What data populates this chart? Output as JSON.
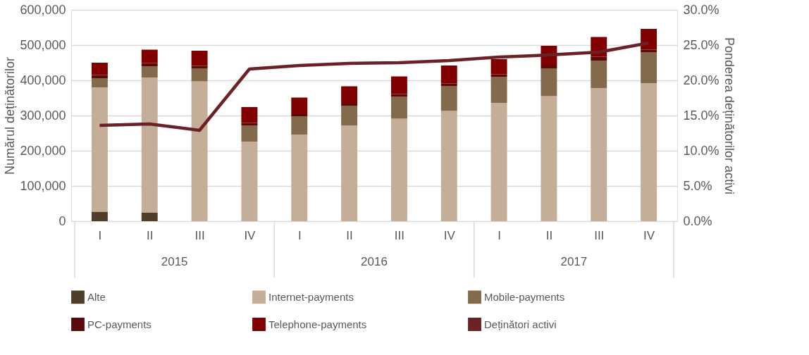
{
  "chart_data": {
    "type": "bar",
    "stacked": true,
    "ylabel": "Numărul deținătorilor",
    "y2label": "Ponderea deținătorilor activi",
    "categories": [
      "I",
      "II",
      "III",
      "IV",
      "I",
      "II",
      "III",
      "IV",
      "I",
      "II",
      "III",
      "IV"
    ],
    "annotations": [
      "2015",
      "2016",
      "2017"
    ],
    "series": [
      {
        "name": "Alte",
        "color": "#4f3f2a",
        "values": [
          27000,
          24000,
          0,
          0,
          0,
          0,
          0,
          0,
          0,
          0,
          0,
          0
        ]
      },
      {
        "name": "Internet-payments",
        "color": "#c4ae9a",
        "values": [
          353000,
          384000,
          397000,
          226000,
          246000,
          272000,
          291000,
          313000,
          336000,
          355000,
          378000,
          392000
        ]
      },
      {
        "name": "Mobile-payments",
        "color": "#836a4a",
        "values": [
          26000,
          31000,
          36000,
          45000,
          51000,
          55000,
          62000,
          71000,
          73000,
          79000,
          78000,
          87000
        ]
      },
      {
        "name": "PC-payments",
        "color": "#5a0a0a",
        "values": [
          9000,
          10000,
          8000,
          8000,
          7000,
          9000,
          8000,
          7000,
          8000,
          8000,
          11000,
          8000
        ]
      },
      {
        "name": "Telephone-payments",
        "color": "#800000",
        "values": [
          35000,
          38000,
          43000,
          45000,
          47000,
          47000,
          50000,
          51000,
          43000,
          56000,
          56000,
          59000
        ]
      },
      {
        "name": "Deținători activi",
        "color": "#6b2226",
        "type": "line",
        "axis": "y2",
        "values": [
          13.6,
          13.8,
          12.9,
          21.6,
          22.1,
          22.4,
          22.5,
          22.8,
          23.3,
          23.6,
          24.0,
          25.3
        ]
      }
    ],
    "ylim": [
      0,
      600000
    ],
    "yticks": [
      {
        "value": 0,
        "label": "0"
      },
      {
        "value": 100000,
        "label": "100,000"
      },
      {
        "value": 200000,
        "label": "200,000"
      },
      {
        "value": 300000,
        "label": "300,000"
      },
      {
        "value": 400000,
        "label": "400,000"
      },
      {
        "value": 500000,
        "label": "500,000"
      },
      {
        "value": 600000,
        "label": "600,000"
      }
    ],
    "y2lim": [
      0,
      30
    ],
    "y2ticks": [
      {
        "value": 0,
        "label": "0.0%"
      },
      {
        "value": 5,
        "label": "5.0%"
      },
      {
        "value": 10,
        "label": "10.0%"
      },
      {
        "value": 15,
        "label": "15.0%"
      },
      {
        "value": 20,
        "label": "20.0%"
      },
      {
        "value": 25,
        "label": "25.0%"
      },
      {
        "value": 30,
        "label": "30.0%"
      }
    ],
    "grid": "y",
    "legend": "bottom",
    "marker": "none",
    "line_style": "solid"
  }
}
